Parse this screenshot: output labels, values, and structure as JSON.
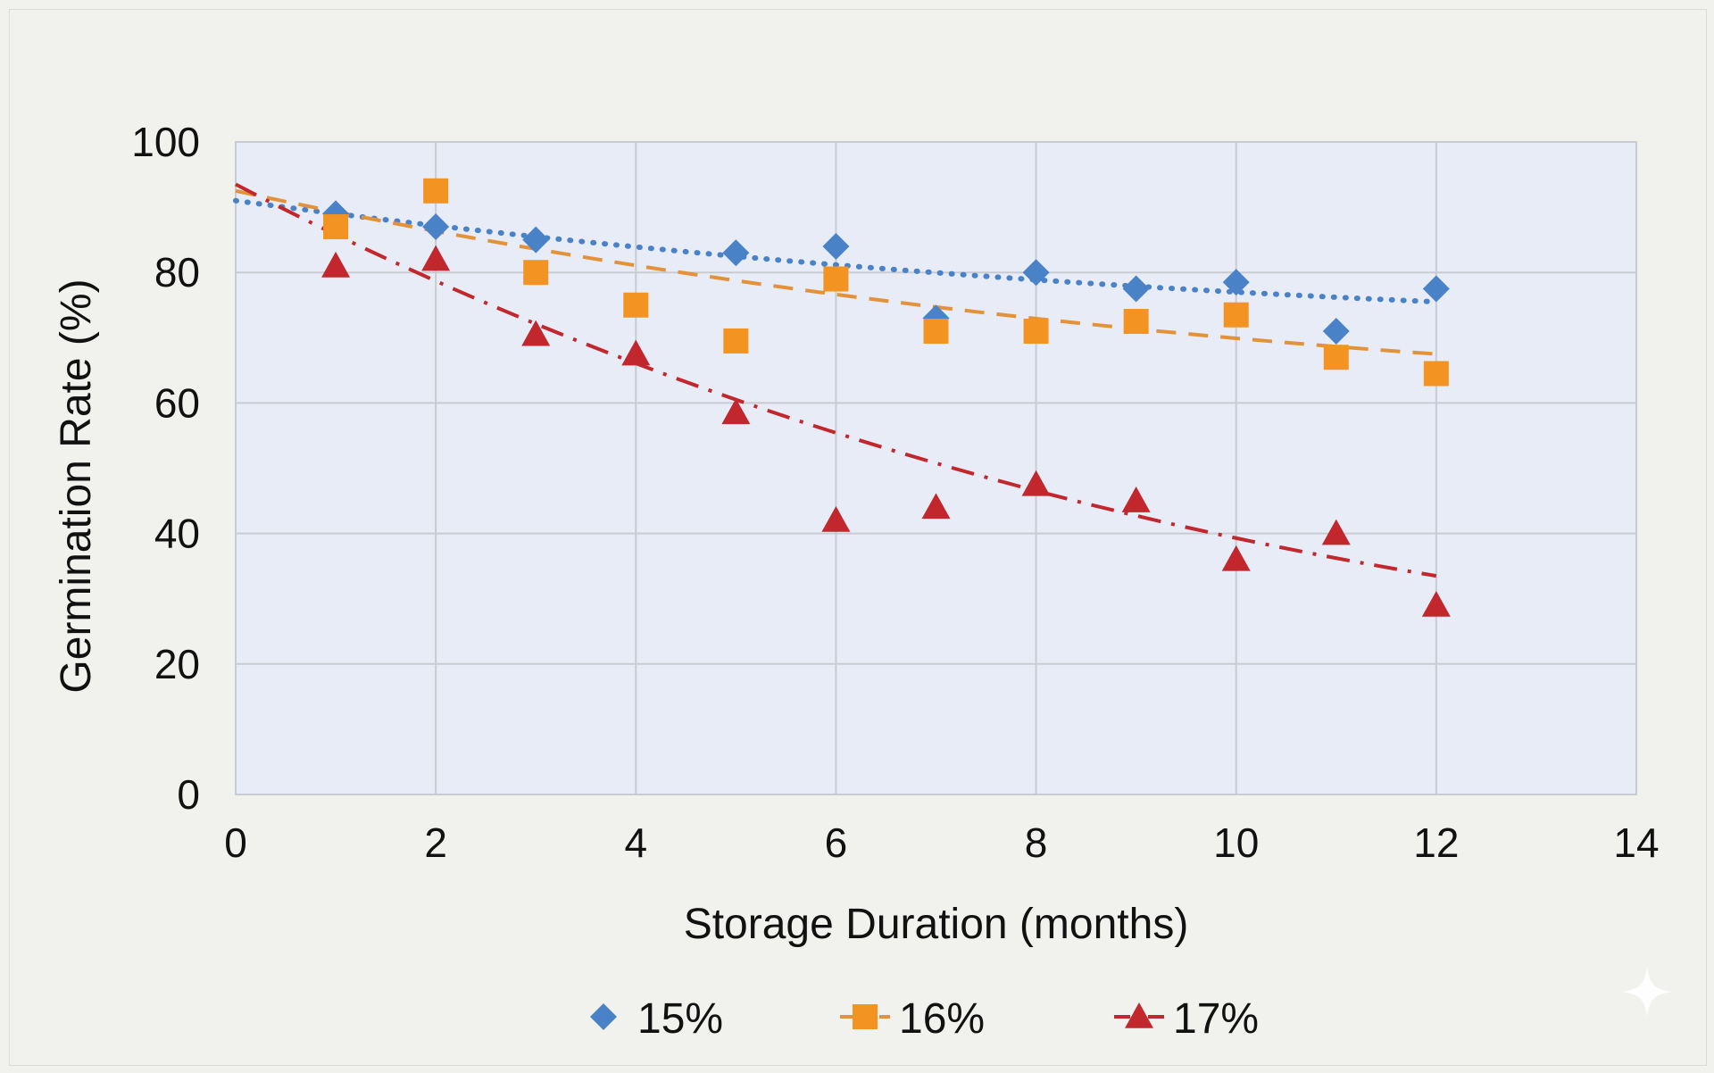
{
  "chart_data": {
    "type": "scatter",
    "title": "",
    "xlabel": "Storage Duration (months)",
    "ylabel": "Germination Rate (%)",
    "xlim": [
      0,
      14
    ],
    "ylim": [
      0,
      100
    ],
    "x_ticks": [
      0,
      2,
      4,
      6,
      8,
      10,
      12,
      14
    ],
    "y_ticks": [
      0,
      20,
      40,
      60,
      80,
      100
    ],
    "grid": true,
    "legend_position": "bottom",
    "plot_background": "#e8ecf6",
    "series": [
      {
        "name": "15%",
        "marker": "diamond",
        "color": "#4a82c8",
        "trendline": "dotted",
        "trend_color": "#4a82c8",
        "x": [
          1,
          2,
          3,
          5,
          6,
          7,
          8,
          9,
          10,
          11,
          12
        ],
        "y": [
          89,
          87,
          85,
          83,
          84,
          73,
          80,
          77.5,
          78.5,
          71,
          77.5
        ],
        "trend_start": 91,
        "trend_end": 75.5
      },
      {
        "name": "16%",
        "marker": "square",
        "color": "#f39322",
        "trendline": "dashed",
        "trend_color": "#e3923a",
        "x": [
          1,
          2,
          3,
          4,
          5,
          6,
          7,
          8,
          9,
          10,
          11,
          12
        ],
        "y": [
          87,
          92.5,
          80,
          75,
          69.5,
          79,
          71,
          71,
          72.5,
          73.5,
          67,
          64.5
        ],
        "trend_start": 92.5,
        "trend_end": 67.5
      },
      {
        "name": "17%",
        "marker": "triangle",
        "color": "#c1272d",
        "trendline": "dash-dot",
        "trend_color": "#c1272d",
        "x": [
          1,
          2,
          3,
          4,
          5,
          6,
          7,
          8,
          9,
          10,
          11,
          12
        ],
        "y": [
          81,
          82,
          70.5,
          67.5,
          58.5,
          42,
          44,
          47.5,
          45,
          36,
          40,
          29
        ],
        "trend_start": 93.5,
        "trend_end": 33.5
      }
    ]
  }
}
